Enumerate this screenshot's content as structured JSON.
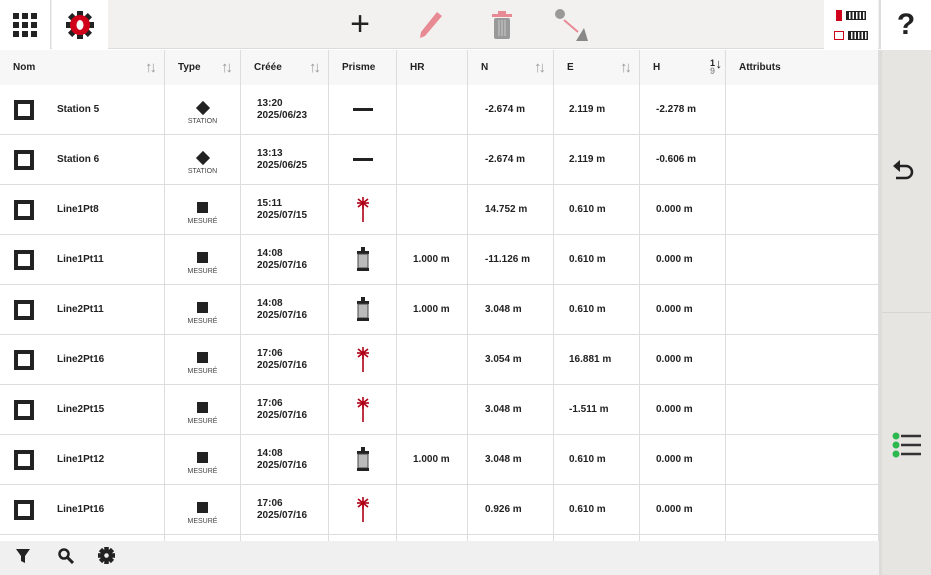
{
  "toolbar": {
    "apps": "apps-grid",
    "settings": "gear-red",
    "add": "+",
    "help": "?"
  },
  "colors": {
    "accent": "#d0021b",
    "disabled_accent": "#e88a93",
    "side_panel": "#e6e5e2"
  },
  "columns": [
    {
      "label": "Nom",
      "sortable": true
    },
    {
      "label": "Type",
      "sortable": true
    },
    {
      "label": "Créée",
      "sortable": true
    },
    {
      "label": "Prisme"
    },
    {
      "label": "HR"
    },
    {
      "label": "N",
      "sortable": true
    },
    {
      "label": "E",
      "sortable": true
    },
    {
      "label": "H",
      "sort_active": "1-9"
    },
    {
      "label": "Attributs"
    }
  ],
  "rows": [
    {
      "name": "Station 5",
      "type": "STATION",
      "time": "13:20",
      "date": "2025/06/23",
      "prism": "none",
      "hr": "",
      "n": "-2.674 m",
      "e": "2.119 m",
      "h": "-2.278 m"
    },
    {
      "name": "Station 6",
      "type": "STATION",
      "time": "13:13",
      "date": "2025/06/25",
      "prism": "none",
      "hr": "",
      "n": "-2.674 m",
      "e": "2.119 m",
      "h": "-0.606 m"
    },
    {
      "name": "Line1Pt8",
      "type": "MESURÉ",
      "time": "15:11",
      "date": "2025/07/15",
      "prism": "laser",
      "hr": "",
      "n": "14.752 m",
      "e": "0.610 m",
      "h": "0.000 m"
    },
    {
      "name": "Line1Pt11",
      "type": "MESURÉ",
      "time": "14:08",
      "date": "2025/07/16",
      "prism": "prism",
      "hr": "1.000 m",
      "n": "-11.126 m",
      "e": "0.610 m",
      "h": "0.000 m"
    },
    {
      "name": "Line2Pt11",
      "type": "MESURÉ",
      "time": "14:08",
      "date": "2025/07/16",
      "prism": "prism",
      "hr": "1.000 m",
      "n": "3.048 m",
      "e": "0.610 m",
      "h": "0.000 m"
    },
    {
      "name": "Line2Pt16",
      "type": "MESURÉ",
      "time": "17:06",
      "date": "2025/07/16",
      "prism": "laser",
      "hr": "",
      "n": "3.054 m",
      "e": "16.881 m",
      "h": "0.000 m"
    },
    {
      "name": "Line2Pt15",
      "type": "MESURÉ",
      "time": "17:06",
      "date": "2025/07/16",
      "prism": "laser",
      "hr": "",
      "n": "3.048 m",
      "e": "-1.511 m",
      "h": "0.000 m"
    },
    {
      "name": "Line1Pt12",
      "type": "MESURÉ",
      "time": "14:08",
      "date": "2025/07/16",
      "prism": "prism",
      "hr": "1.000 m",
      "n": "3.048 m",
      "e": "0.610 m",
      "h": "0.000 m"
    },
    {
      "name": "Line1Pt16",
      "type": "MESURÉ",
      "time": "17:06",
      "date": "2025/07/16",
      "prism": "laser",
      "hr": "",
      "n": "0.926 m",
      "e": "0.610 m",
      "h": "0.000 m"
    }
  ]
}
